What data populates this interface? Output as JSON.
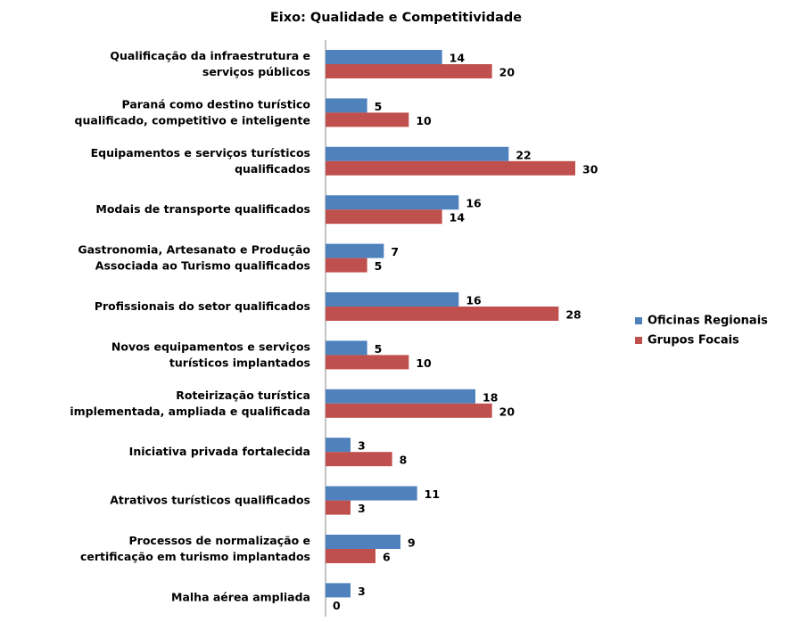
{
  "chart_data": {
    "type": "bar",
    "orientation": "horizontal",
    "title": "Eixo: Qualidade e Competitividade",
    "categories": [
      "Qualificação da infraestrutura e\nserviços públicos",
      "Paraná como destino turístico\nqualificado, competitivo e inteligente",
      "Equipamentos e serviços turísticos\nqualificados",
      "Modais de transporte qualificados",
      "Gastronomia, Artesanato e Produção\nAssociada ao Turismo qualificados",
      "Profissionais do setor qualificados",
      "Novos equipamentos e serviços\nturísticos implantados",
      "Roteirização turística\nimplementada, ampliada e qualificada",
      "Iniciativa privada fortalecida",
      "Atrativos turísticos qualificados",
      "Processos de normalização e\ncertificação em turismo implantados",
      "Malha aérea ampliada"
    ],
    "series": [
      {
        "name": "Oficinas Regionais",
        "color": "#4f81bd",
        "values": [
          14,
          5,
          22,
          16,
          7,
          16,
          5,
          18,
          3,
          11,
          9,
          3
        ]
      },
      {
        "name": "Grupos Focais",
        "color": "#c0504d",
        "values": [
          20,
          10,
          30,
          14,
          5,
          28,
          10,
          20,
          8,
          3,
          6,
          0
        ]
      }
    ],
    "xlim": [
      0,
      30
    ],
    "legend": "right"
  }
}
